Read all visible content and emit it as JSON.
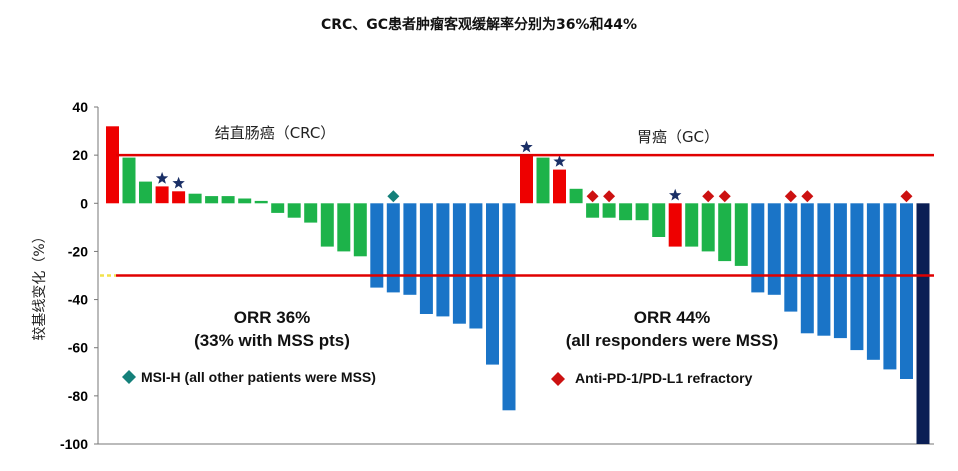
{
  "chart_data": {
    "type": "bar",
    "title": "CRC、GC患者肿瘤客观缓解率分别为36%和44%",
    "ylabel": "较基线变化（%）",
    "ylim": [
      -100,
      40
    ],
    "yticks": [
      "40",
      "20",
      "0",
      "-20",
      "-40",
      "-60",
      "-80",
      "-100"
    ],
    "ref_lines": [
      20,
      -30
    ],
    "groups": [
      {
        "name": "结直肠癌（CRC）",
        "orr_line1": "ORR 36%",
        "orr_line2": "(33% with MSS pts)",
        "values": [
          32,
          19,
          9,
          7,
          5,
          4,
          3,
          3,
          2,
          1,
          -4,
          -6,
          -8,
          -18,
          -20,
          -22,
          -35,
          -37,
          -38,
          -46,
          -47,
          -50,
          -52,
          -67,
          -86
        ],
        "colors": [
          "red",
          "green",
          "green",
          "red",
          "red",
          "green",
          "green",
          "green",
          "green",
          "green",
          "green",
          "green",
          "green",
          "green",
          "green",
          "green",
          "blue",
          "blue",
          "blue",
          "blue",
          "blue",
          "blue",
          "blue",
          "blue",
          "blue"
        ],
        "stars": [
          3,
          4
        ],
        "diamonds": [
          17
        ]
      },
      {
        "name": "胃癌（GC）",
        "orr_line1": "ORR 44%",
        "orr_line2": "(all responders were MSS)",
        "values": [
          20,
          19,
          14,
          6,
          -6,
          -6,
          -7,
          -7,
          -14,
          -18,
          -18,
          -20,
          -24,
          -26,
          -37,
          -38,
          -45,
          -54,
          -55,
          -56,
          -61,
          -65,
          -69,
          -73,
          -100
        ],
        "colors": [
          "red",
          "green",
          "red",
          "green",
          "green",
          "green",
          "green",
          "green",
          "green",
          "red",
          "green",
          "green",
          "green",
          "green",
          "blue",
          "blue",
          "blue",
          "blue",
          "blue",
          "blue",
          "blue",
          "blue",
          "blue",
          "blue",
          "navy"
        ],
        "stars": [
          0,
          2,
          9
        ],
        "diamonds": [
          4,
          5,
          11,
          12,
          16,
          17,
          23
        ]
      }
    ],
    "legend": [
      {
        "label": "MSI-H (all other patients were MSS)",
        "marker": "teal-diamond"
      },
      {
        "label": "Anti-PD-1/PD-L1 refractory",
        "marker": "red-diamond"
      }
    ],
    "palette": {
      "red": "#ee0000",
      "green": "#1db34a",
      "blue": "#1a74c7",
      "navy": "#0b1f55",
      "star": "#1a2f66",
      "teal": "#14807a",
      "diamond_red": "#cc1111",
      "ref_line": "#e00000"
    }
  }
}
